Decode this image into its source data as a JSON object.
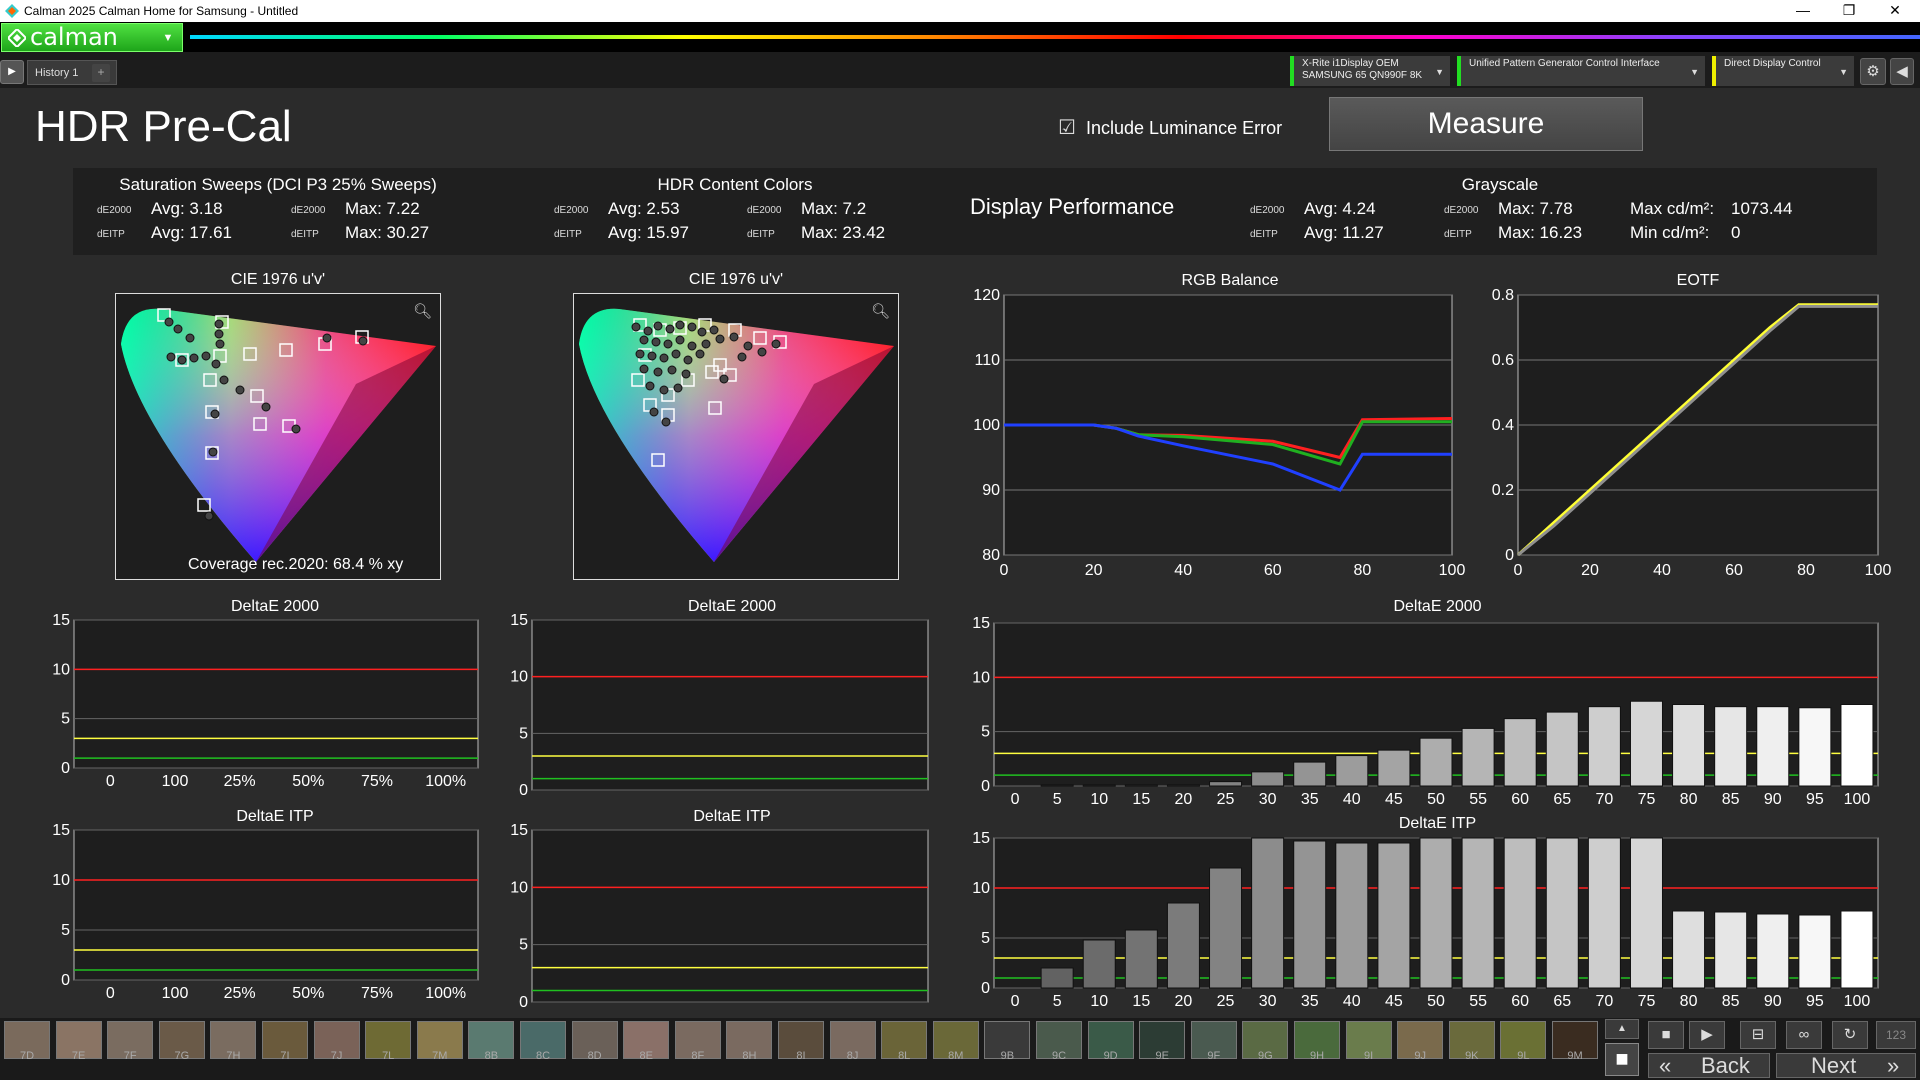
{
  "window": {
    "title": "Calman 2025 Calman Home for Samsung  - Untitled",
    "min": "—",
    "max": "❐",
    "close": "✕"
  },
  "brand": {
    "logo": "calman"
  },
  "tabs": {
    "play": "▶",
    "history": "History 1",
    "plus": "+"
  },
  "devices": [
    {
      "line1": "X-Rite i1Display OEM",
      "line2": "SAMSUNG 65 QN990F 8K",
      "color": "#22dd22"
    },
    {
      "line1": "Unified Pattern Generator Control Interface",
      "line2": "",
      "color": "#22dd22"
    },
    {
      "line1": "Direct Display Control",
      "line2": "",
      "color": "#eeee00"
    }
  ],
  "page": {
    "title": "HDR Pre-Cal",
    "include_lum": "Include Luminance Error",
    "include_checked": true,
    "measure": "Measure"
  },
  "stats": {
    "sat": {
      "title": "Saturation Sweeps (DCI P3 25% Sweeps)",
      "l1": "dE2000",
      "avg1": "Avg: 3.18",
      "l2": "dE2000",
      "max1": "Max: 7.22",
      "l3": "dEITP",
      "avg2": "Avg: 17.61",
      "l4": "dEITP",
      "max2": "Max: 30.27"
    },
    "hdr": {
      "title": "HDR Content Colors",
      "l1": "dE2000",
      "avg1": "Avg: 2.53",
      "l2": "dE2000",
      "max1": "Max: 7.2",
      "l3": "dEITP",
      "avg2": "Avg: 15.97",
      "l4": "dEITP",
      "max2": "Max: 23.42"
    },
    "dp": "Display Performance",
    "gray": {
      "title": "Grayscale",
      "l1": "dE2000",
      "avg1": "Avg: 4.24",
      "l2": "dE2000",
      "max1": "Max: 7.78",
      "l3": "dEITP",
      "avg2": "Avg: 11.27",
      "l4": "dEITP",
      "max2": "Max: 16.23",
      "maxcd": "Max cd/m²:",
      "maxcdv": "1073.44",
      "mincd": "Min cd/m²:",
      "mincdv": "0"
    }
  },
  "cie1": {
    "title": "CIE 1976 u'v'",
    "coverage": "Coverage rec.2020:  68.4 % xy"
  },
  "cie2": {
    "title": "CIE 1976 u'v'"
  },
  "zoom_icon": "search-icon",
  "chart_data": [
    {
      "type": "line",
      "title": "RGB Balance",
      "x": [
        0,
        20,
        25,
        30,
        40,
        60,
        75,
        80,
        100
      ],
      "xlim": [
        0,
        100
      ],
      "ylim": [
        80,
        120
      ],
      "yticks": [
        80,
        90,
        100,
        110,
        120
      ],
      "xticks": [
        0,
        20,
        40,
        60,
        80,
        100
      ],
      "series": [
        {
          "color": "#ff2020",
          "values": [
            100,
            100,
            99.5,
            98.5,
            98.4,
            97.5,
            95,
            100.8,
            101
          ]
        },
        {
          "color": "#20b020",
          "values": [
            100,
            100,
            99.5,
            98.5,
            98.2,
            97,
            94,
            100.5,
            100.5
          ]
        },
        {
          "color": "#2040ff",
          "values": [
            100,
            100,
            99.5,
            98.3,
            96.8,
            94,
            90,
            95.5,
            95.5
          ]
        }
      ]
    },
    {
      "type": "line",
      "title": "EOTF",
      "x": [
        0,
        10,
        20,
        30,
        40,
        50,
        60,
        70,
        78,
        85,
        100
      ],
      "xlim": [
        0,
        100
      ],
      "ylim": [
        0,
        0.8
      ],
      "yticks": [
        0,
        0.2,
        0.4,
        0.6,
        0.8
      ],
      "xticks": [
        0,
        20,
        40,
        60,
        80,
        100
      ],
      "series": [
        {
          "color": "#ffff33",
          "values": [
            0,
            0.1,
            0.2,
            0.3,
            0.4,
            0.5,
            0.6,
            0.7,
            0.77,
            0.77,
            0.77
          ]
        },
        {
          "color": "#909090",
          "values": [
            0,
            0.09,
            0.19,
            0.29,
            0.39,
            0.49,
            0.59,
            0.69,
            0.765,
            0.765,
            0.765
          ]
        }
      ]
    },
    {
      "type": "bar",
      "title": "DeltaE 2000",
      "categories": [
        "0",
        "5",
        "10",
        "15",
        "20",
        "25",
        "30",
        "35",
        "40",
        "45",
        "50",
        "55",
        "60",
        "65",
        "70",
        "75",
        "80",
        "85",
        "90",
        "95",
        "100"
      ],
      "values": [
        0,
        0.1,
        0.1,
        0.1,
        0.1,
        0.4,
        1.3,
        2.2,
        2.8,
        3.3,
        4.4,
        5.3,
        6.2,
        6.8,
        7.3,
        7.8,
        7.5,
        7.3,
        7.3,
        7.2,
        7.5
      ],
      "ylim": [
        0,
        15
      ],
      "yticks": [
        0,
        5,
        10,
        15
      ]
    },
    {
      "type": "bar",
      "title": "DeltaE ITP",
      "categories": [
        "0",
        "5",
        "10",
        "15",
        "20",
        "25",
        "30",
        "35",
        "40",
        "45",
        "50",
        "55",
        "60",
        "65",
        "70",
        "75",
        "80",
        "85",
        "90",
        "95",
        "100"
      ],
      "values": [
        0,
        2,
        4.8,
        5.8,
        8.5,
        12,
        15,
        14.7,
        14.5,
        14.5,
        15,
        15,
        15,
        15,
        15,
        15,
        7.7,
        7.6,
        7.4,
        7.3,
        7.7
      ],
      "ylim": [
        0,
        15
      ],
      "yticks": [
        0,
        5,
        10,
        15
      ]
    },
    {
      "type": "bar",
      "title": "DeltaE 2000",
      "xticks": [
        "0",
        "100",
        "25%",
        "50%",
        "75%",
        "100%"
      ],
      "ylim": [
        0,
        15
      ],
      "yticks": [
        0,
        5,
        10,
        15
      ]
    },
    {
      "type": "bar",
      "title": "DeltaE ITP",
      "xticks": [
        "0",
        "100",
        "25%",
        "50%",
        "75%",
        "100%"
      ],
      "ylim": [
        0,
        15
      ],
      "yticks": [
        0,
        5,
        10,
        15
      ]
    },
    {
      "type": "bar",
      "title": "DeltaE 2000",
      "ylim": [
        0,
        15
      ],
      "yticks": [
        0,
        5,
        10,
        15
      ]
    },
    {
      "type": "bar",
      "title": "DeltaE ITP",
      "ylim": [
        0,
        15
      ],
      "yticks": [
        0,
        5,
        10,
        15
      ]
    }
  ],
  "swatches": [
    {
      "label": "7D",
      "color": "#7a6a5c"
    },
    {
      "label": "7E",
      "color": "#8a7464"
    },
    {
      "label": "7F",
      "color": "#7a6c60"
    },
    {
      "label": "7G",
      "color": "#6a5a48"
    },
    {
      "label": "7H",
      "color": "#7a6c60"
    },
    {
      "label": "7I",
      "color": "#6a5a3c"
    },
    {
      "label": "7J",
      "color": "#7a6258"
    },
    {
      "label": "7L",
      "color": "#6e6a34"
    },
    {
      "label": "7M",
      "color": "#8a7a4c"
    },
    {
      "label": "8B",
      "color": "#5a7a70"
    },
    {
      "label": "8C",
      "color": "#4a6a68"
    },
    {
      "label": "8D",
      "color": "#6a6058"
    },
    {
      "label": "8E",
      "color": "#8a7068"
    },
    {
      "label": "8F",
      "color": "#7a6a60"
    },
    {
      "label": "8H",
      "color": "#7a6a60"
    },
    {
      "label": "8I",
      "color": "#5a4c3c"
    },
    {
      "label": "8J",
      "color": "#7a6a60"
    },
    {
      "label": "8L",
      "color": "#6a6438"
    },
    {
      "label": "8M",
      "color": "#6a6838"
    },
    {
      "label": "9B",
      "color": "#3a3a3a"
    },
    {
      "label": "9C",
      "color": "#4a5a4c"
    },
    {
      "label": "9D",
      "color": "#3a5a48"
    },
    {
      "label": "9E",
      "color": "#2c3c34"
    },
    {
      "label": "9F",
      "color": "#4a5a50"
    },
    {
      "label": "9G",
      "color": "#5a6a44"
    },
    {
      "label": "9H",
      "color": "#4a6a3c"
    },
    {
      "label": "9I",
      "color": "#6a7c4c"
    },
    {
      "label": "9J",
      "color": "#7a6a4c"
    },
    {
      "label": "9K",
      "color": "#6a6a3c"
    },
    {
      "label": "9L",
      "color": "#6a7034"
    },
    {
      "label": "9M",
      "color": "#3a2c20"
    }
  ],
  "controls": {
    "up": "▲",
    "stop": "■",
    "play": "▶",
    "save": "⊟",
    "loop": "∞",
    "refresh": "↻",
    "num": "123",
    "back": "Back",
    "next": "Next",
    "back_icon": "«",
    "next_icon": "»"
  }
}
